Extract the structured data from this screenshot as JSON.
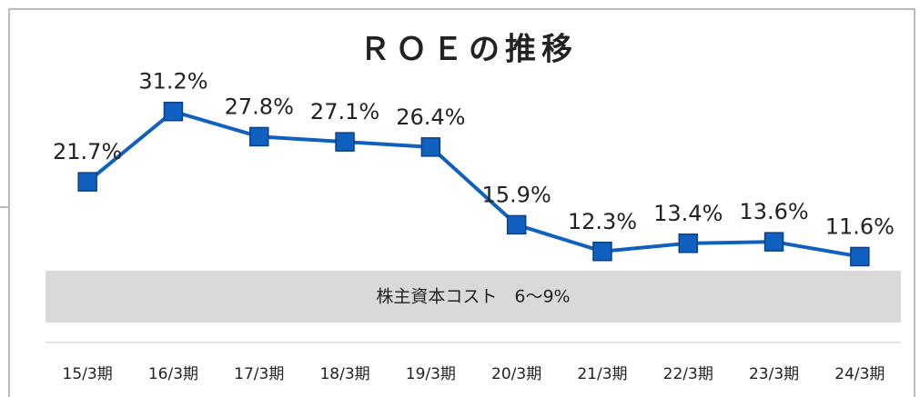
{
  "chart_data": {
    "type": "line",
    "title": "ＲＯＥの推移",
    "categories": [
      "15/3期",
      "16/3期",
      "17/3期",
      "18/3期",
      "19/3期",
      "20/3期",
      "21/3期",
      "22/3期",
      "23/3期",
      "24/3期"
    ],
    "series": [
      {
        "color": "#1060c0",
        "values": [
          21.7,
          31.2,
          27.8,
          27.1,
          26.4,
          15.9,
          12.3,
          13.4,
          13.6,
          11.6
        ],
        "value_labels": [
          "21.7%",
          "31.2%",
          "27.8%",
          "27.1%",
          "26.4%",
          "15.9%",
          "12.3%",
          "13.4%",
          "13.6%",
          "11.6%"
        ]
      }
    ],
    "ylim": [
      0,
      40
    ],
    "annotations": [
      "株主資本コスト　6～9%"
    ]
  }
}
